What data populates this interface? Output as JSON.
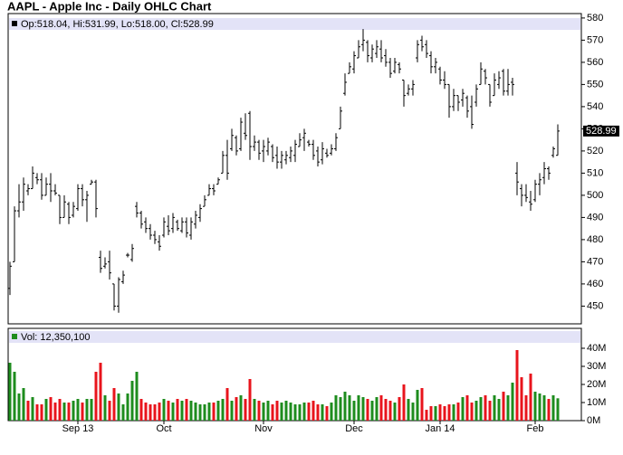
{
  "chart_data": {
    "type": "ohlc",
    "title": "AAPL - Apple Inc - Daily OHLC Chart",
    "legend": "Op:518.04, Hi:531.99, Lo:518.00, Cl:528.99",
    "last_label": "528.99",
    "color": "#000000",
    "categories": [
      null,
      null,
      null,
      null,
      null,
      null,
      null,
      null,
      null,
      null,
      null,
      null,
      null,
      null,
      null,
      "Sep 13",
      null,
      null,
      null,
      null,
      null,
      null,
      null,
      null,
      null,
      null,
      null,
      null,
      null,
      null,
      null,
      null,
      null,
      null,
      "Oct",
      null,
      null,
      null,
      null,
      null,
      null,
      null,
      null,
      null,
      null,
      null,
      null,
      null,
      null,
      null,
      null,
      null,
      null,
      null,
      null,
      null,
      "Nov",
      null,
      null,
      null,
      null,
      null,
      null,
      null,
      null,
      null,
      null,
      null,
      null,
      null,
      null,
      null,
      null,
      null,
      null,
      null,
      "Dec",
      null,
      null,
      null,
      null,
      null,
      null,
      null,
      null,
      null,
      null,
      null,
      null,
      null,
      null,
      null,
      null,
      null,
      null,
      "Jan 14",
      null,
      null,
      null,
      null,
      null,
      null,
      null,
      null,
      null,
      null,
      null,
      null,
      null,
      null,
      null,
      null,
      null,
      null,
      null,
      null,
      "Feb",
      null,
      null,
      null,
      null,
      null
    ],
    "open": [
      458,
      470,
      493,
      497,
      502,
      503,
      508,
      507,
      500,
      505,
      502,
      500,
      490,
      496,
      491,
      494,
      503,
      498,
      505,
      506,
      472,
      468,
      470,
      460,
      450,
      461,
      473,
      471,
      495,
      492,
      488,
      485,
      482,
      479,
      482,
      486,
      485,
      488,
      484,
      488,
      482,
      487,
      490,
      495,
      500,
      503,
      505,
      510,
      518,
      521,
      526,
      521,
      528,
      537,
      522,
      524,
      520,
      520,
      522,
      518,
      515,
      516,
      517,
      518,
      522,
      526,
      524,
      523,
      520,
      516,
      519,
      519,
      521,
      530,
      546,
      555,
      557,
      562,
      568,
      569,
      562,
      564,
      566,
      563,
      560,
      556,
      559,
      552,
      546,
      548,
      562,
      570,
      568,
      563,
      558,
      557,
      552,
      550,
      540,
      545,
      543,
      544,
      540,
      542,
      550,
      556,
      550,
      545,
      550,
      556,
      547,
      551,
      510,
      503,
      500,
      497,
      498,
      505,
      508,
      512,
      518,
      518.04
    ],
    "high": [
      470,
      495,
      505,
      508,
      505,
      513,
      510,
      510,
      508,
      510,
      505,
      500,
      500,
      497,
      497,
      505,
      505,
      502,
      507,
      507,
      475,
      472,
      475,
      460,
      463,
      466,
      474,
      478,
      497,
      493,
      490,
      487,
      484,
      482,
      490,
      491,
      492,
      489,
      490,
      490,
      490,
      493,
      496,
      500,
      505,
      505,
      508,
      520,
      525,
      530,
      527,
      535,
      537,
      538,
      527,
      525,
      525,
      526,
      523,
      522,
      520,
      520,
      522,
      525,
      528,
      530,
      525,
      525,
      522,
      524,
      521,
      523,
      528,
      540,
      555,
      560,
      565,
      570,
      575,
      570,
      568,
      570,
      570,
      566,
      562,
      562,
      560,
      552,
      550,
      552,
      570,
      572,
      570,
      565,
      562,
      558,
      556,
      550,
      548,
      545,
      548,
      545,
      545,
      550,
      560,
      557,
      550,
      555,
      556,
      557,
      557,
      553,
      515,
      505,
      505,
      502,
      507,
      510,
      515,
      513,
      522,
      531.99
    ],
    "low": [
      455,
      470,
      490,
      493,
      500,
      503,
      505,
      498,
      500,
      497,
      500,
      487,
      490,
      487,
      490,
      493,
      495,
      488,
      505,
      490,
      465,
      467,
      462,
      448,
      447,
      460,
      472,
      470,
      490,
      485,
      483,
      480,
      478,
      475,
      481,
      482,
      483,
      484,
      483,
      481,
      480,
      485,
      488,
      495,
      500,
      500,
      505,
      510,
      507,
      520,
      518,
      520,
      525,
      516,
      520,
      516,
      515,
      518,
      515,
      512,
      512,
      514,
      515,
      515,
      522,
      520,
      522,
      516,
      513,
      514,
      517,
      518,
      520,
      530,
      545,
      555,
      555,
      562,
      565,
      560,
      560,
      562,
      560,
      558,
      553,
      555,
      555,
      540,
      545,
      545,
      560,
      565,
      562,
      555,
      555,
      550,
      548,
      535,
      538,
      538,
      540,
      535,
      530,
      540,
      550,
      550,
      540,
      545,
      548,
      545,
      545,
      545,
      500,
      495,
      497,
      493,
      497,
      500,
      505,
      507,
      517,
      518.0
    ],
    "close": [
      468,
      493,
      497,
      505,
      503,
      510,
      507,
      500,
      505,
      502,
      501,
      490,
      497,
      490,
      495,
      503,
      498,
      500,
      506,
      494,
      467,
      469,
      465,
      450,
      462,
      464,
      473,
      476,
      492,
      487,
      485,
      482,
      480,
      477,
      488,
      484,
      490,
      485,
      488,
      483,
      488,
      491,
      494,
      498,
      503,
      502,
      507,
      518,
      510,
      527,
      520,
      533,
      527,
      522,
      524,
      519,
      522,
      524,
      517,
      515,
      518,
      518,
      520,
      523,
      525,
      528,
      523,
      518,
      515,
      521,
      518,
      521,
      526,
      538,
      551,
      558,
      563,
      567,
      570,
      563,
      566,
      567,
      562,
      560,
      555,
      560,
      557,
      545,
      548,
      550,
      568,
      567,
      564,
      558,
      560,
      552,
      550,
      540,
      545,
      542,
      546,
      538,
      532,
      548,
      557,
      553,
      542,
      552,
      553,
      547,
      550,
      550,
      506,
      500,
      499,
      496,
      505,
      507,
      512,
      510,
      521,
      528.99
    ],
    "ylim": [
      442,
      582
    ],
    "yticks": [
      450,
      460,
      470,
      480,
      490,
      500,
      510,
      520,
      530,
      540,
      550,
      560,
      570,
      580
    ],
    "volume": {
      "legend": "Vol: 12,350,100",
      "up_color": "#1e8c1e",
      "down_color": "#e8141c",
      "ylim": [
        0,
        51000000
      ],
      "yticks": [
        {
          "value": 0,
          "label": "0M"
        },
        {
          "value": 10000000,
          "label": "10M"
        },
        {
          "value": 20000000,
          "label": "20M"
        },
        {
          "value": 30000000,
          "label": "30M"
        },
        {
          "value": 40000000,
          "label": "40M"
        }
      ],
      "values": [
        32000000.0,
        27000000.0,
        15000000.0,
        18000000.0,
        11000000.0,
        13000000.0,
        9000000.0,
        9000000.0,
        12000000.0,
        13000000.0,
        10000000.0,
        12000000.0,
        10000000.0,
        10000000.0,
        11000000.0,
        12000000.0,
        10000000.0,
        12000000.0,
        12000000.0,
        27000000.0,
        32000000.0,
        14000000.0,
        11000000.0,
        18000000.0,
        15000000.0,
        9000000.0,
        15000000.0,
        22000000.0,
        27000000.0,
        12000000.0,
        10000000.0,
        9000000.0,
        9000000.0,
        10000000.0,
        12000000.0,
        11000000.0,
        10000000.0,
        12000000.0,
        11000000.0,
        12000000.0,
        11000000.0,
        10000000.0,
        9000000.0,
        9000000.0,
        10000000.0,
        10000000.0,
        11000000.0,
        12000000.0,
        18000000.0,
        11000000.0,
        13000000.0,
        14000000.0,
        12000000.0,
        23000000.0,
        12000000.0,
        11000000.0,
        10000000.0,
        11000000.0,
        9000000.0,
        11000000.0,
        10000000.0,
        11000000.0,
        10000000.0,
        9000000.0,
        9000000.0,
        10000000.0,
        10000000.0,
        11000000.0,
        9000000.0,
        9000000.0,
        8000000.0,
        10000000.0,
        14000000.0,
        13000000.0,
        16000000.0,
        14000000.0,
        11000000.0,
        14000000.0,
        13000000.0,
        12000000.0,
        11000000.0,
        13000000.0,
        14000000.0,
        12000000.0,
        11000000.0,
        10000000.0,
        13000000.0,
        20000000.0,
        12000000.0,
        10000000.0,
        17000000.0,
        18000000.0,
        6000000.0,
        8000000.0,
        8000000.0,
        9000000.0,
        8000000.0,
        9000000.0,
        9000000.0,
        10000000.0,
        13000000.0,
        14000000.0,
        10000000.0,
        11000000.0,
        13000000.0,
        14000000.0,
        11000000.0,
        14000000.0,
        12000000.0,
        16000000.0,
        14000000.0,
        21000000.0,
        39000000.0,
        24000000.0,
        14000000.0,
        26000000.0,
        16000000.0,
        15000000.0,
        14000000.0,
        12000000.0,
        14000000.0,
        12350100
      ]
    }
  }
}
